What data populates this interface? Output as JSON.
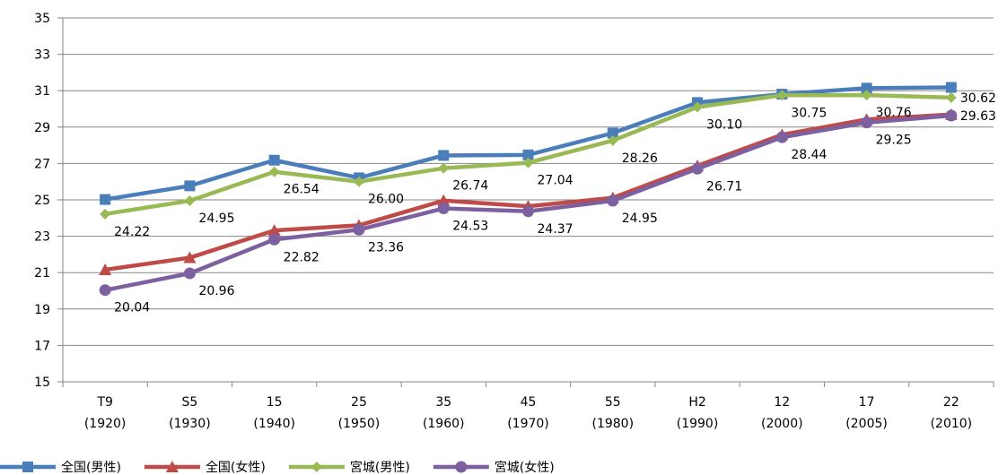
{
  "chart_data": {
    "type": "line",
    "categories": [
      [
        "T9",
        "(1920)"
      ],
      [
        "S5",
        "(1930)"
      ],
      [
        "15",
        "(1940)"
      ],
      [
        "25",
        "(1950)"
      ],
      [
        "35",
        "(1960)"
      ],
      [
        "45",
        "(1970)"
      ],
      [
        "55",
        "(1980)"
      ],
      [
        "H2",
        "(1990)"
      ],
      [
        "12",
        "(2000)"
      ],
      [
        "17",
        "(2005)"
      ],
      [
        "22",
        "(2010)"
      ]
    ],
    "ylim": [
      15,
      35
    ],
    "yticks": [
      15,
      17,
      19,
      21,
      23,
      25,
      27,
      29,
      31,
      33,
      35
    ],
    "grid": true,
    "legend_position": "bottom-left",
    "series": [
      {
        "name": "全国(男性)",
        "color": "#4A7EBB",
        "marker": "square",
        "values": [
          25.02,
          25.77,
          27.18,
          26.21,
          27.44,
          27.47,
          28.67,
          30.35,
          30.81,
          31.14,
          31.18
        ],
        "labels": [
          null,
          null,
          null,
          null,
          null,
          null,
          null,
          null,
          null,
          null,
          null
        ]
      },
      {
        "name": "全国(女性)",
        "color": "#BE4B48",
        "marker": "triangle",
        "values": [
          21.16,
          21.82,
          23.32,
          23.6,
          24.96,
          24.65,
          25.11,
          26.87,
          28.58,
          29.42,
          29.69
        ],
        "labels": [
          null,
          null,
          null,
          null,
          null,
          null,
          null,
          null,
          null,
          null,
          null
        ]
      },
      {
        "name": "宮城(男性)",
        "color": "#98B954",
        "marker": "diamond",
        "values": [
          24.22,
          24.95,
          26.54,
          26.0,
          26.74,
          27.04,
          28.26,
          30.1,
          30.75,
          30.76,
          30.62
        ],
        "labels": [
          "24.22",
          "24.95",
          "26.54",
          "26.00",
          "26.74",
          "27.04",
          "28.26",
          "30.10",
          "30.75",
          "30.76",
          "30.62"
        ]
      },
      {
        "name": "宮城(女性)",
        "color": "#7D60A0",
        "marker": "circle",
        "values": [
          20.04,
          20.96,
          22.82,
          23.36,
          24.53,
          24.37,
          24.95,
          26.71,
          28.44,
          29.25,
          29.63
        ],
        "labels": [
          "20.04",
          "20.96",
          "22.82",
          "23.36",
          "24.53",
          "24.37",
          "24.95",
          "26.71",
          "28.44",
          "29.25",
          "29.63"
        ]
      }
    ]
  }
}
